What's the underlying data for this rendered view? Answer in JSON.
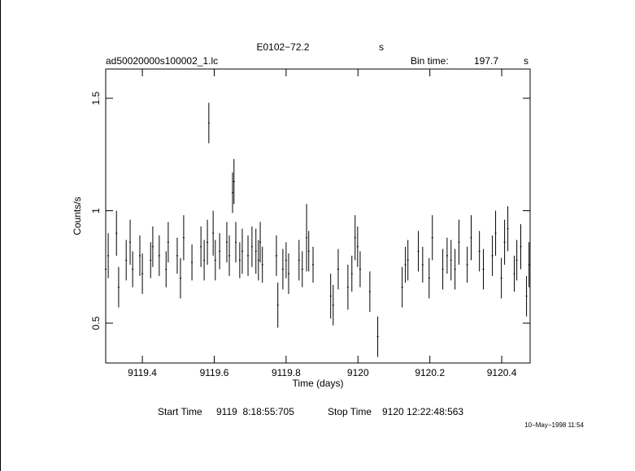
{
  "chart_data": {
    "type": "errorbar",
    "title": "E0102−72.2",
    "title_unit": "s",
    "subtitle": "ad50020000s100002_1.lc",
    "bin_time_label": "Bin time:",
    "bin_time": "197.7",
    "bin_time_unit": "s",
    "x_label": "Time (days)",
    "y_label": "Counts/s",
    "start_label": "Start Time",
    "start_time": "9119  8:18:55:705",
    "stop_label": "Stop Time",
    "stop_time": "9120 12:22:48:563",
    "timestamp": "10−May−1998 11:54",
    "color": "#000000",
    "xlim": [
      9119.298,
      9120.479
    ],
    "ylim": [
      0.323,
      1.63
    ],
    "xticks": [
      9119.4,
      9119.6,
      9119.8,
      9120,
      9120.2,
      9120.4
    ],
    "yticks": [
      0.5,
      1,
      1.5
    ],
    "x": [
      9119.298,
      9119.305,
      9119.328,
      9119.334,
      9119.355,
      9119.366,
      9119.373,
      9119.393,
      9119.4,
      9119.423,
      9119.429,
      9119.447,
      9119.466,
      9119.472,
      9119.497,
      9119.506,
      9119.515,
      9119.538,
      9119.563,
      9119.572,
      9119.581,
      9119.585,
      9119.597,
      9119.603,
      9119.615,
      9119.635,
      9119.642,
      9119.651,
      9119.655,
      9119.66,
      9119.671,
      9119.678,
      9119.694,
      9119.705,
      9119.716,
      9119.723,
      9119.728,
      9119.734,
      9119.773,
      9119.777,
      9119.791,
      9119.8,
      9119.807,
      9119.836,
      9119.845,
      9119.857,
      9119.863,
      9119.875,
      9119.924,
      9119.931,
      9119.945,
      9119.972,
      9119.983,
      9119.992,
      9119.999,
      9120.006,
      9120.033,
      9120.055,
      9120.123,
      9120.132,
      9120.139,
      9120.168,
      9120.18,
      9120.198,
      9120.207,
      9120.236,
      9120.248,
      9120.259,
      9120.27,
      9120.281,
      9120.304,
      9120.315,
      9120.338,
      9120.349,
      9120.374,
      9120.383,
      9120.399,
      9120.408,
      9120.417,
      9120.435,
      9120.442,
      9120.453,
      9120.469,
      9120.476
    ],
    "values": [
      0.74,
      0.8,
      0.9,
      0.66,
      0.78,
      0.86,
      0.74,
      0.8,
      0.72,
      0.78,
      0.84,
      0.8,
      0.74,
      0.86,
      0.8,
      0.7,
      0.88,
      0.77,
      0.84,
      0.78,
      0.86,
      1.39,
      0.9,
      0.78,
      0.82,
      0.86,
      0.8,
      1.08,
      1.13,
      0.86,
      0.78,
      0.82,
      0.8,
      0.84,
      0.82,
      0.78,
      0.86,
      0.76,
      0.8,
      0.58,
      0.74,
      0.78,
      0.72,
      0.78,
      0.74,
      0.88,
      0.82,
      0.76,
      0.62,
      0.58,
      0.74,
      0.66,
      0.72,
      0.88,
      0.84,
      0.74,
      0.64,
      0.44,
      0.66,
      0.76,
      0.78,
      0.82,
      0.76,
      0.7,
      0.88,
      0.74,
      0.8,
      0.78,
      0.74,
      0.86,
      0.76,
      0.88,
      0.82,
      0.74,
      0.8,
      0.9,
      0.7,
      0.86,
      0.92,
      0.72,
      0.78,
      0.84,
      0.62,
      0.76
    ],
    "errors": [
      0.08,
      0.1,
      0.1,
      0.09,
      0.09,
      0.1,
      0.08,
      0.09,
      0.09,
      0.08,
      0.09,
      0.09,
      0.08,
      0.09,
      0.08,
      0.09,
      0.1,
      0.08,
      0.09,
      0.09,
      0.1,
      0.09,
      0.1,
      0.09,
      0.08,
      0.09,
      0.09,
      0.09,
      0.1,
      0.09,
      0.08,
      0.1,
      0.09,
      0.09,
      0.1,
      0.09,
      0.09,
      0.08,
      0.09,
      0.1,
      0.09,
      0.08,
      0.09,
      0.09,
      0.08,
      0.15,
      0.09,
      0.08,
      0.1,
      0.09,
      0.09,
      0.1,
      0.08,
      0.1,
      0.09,
      0.08,
      0.09,
      0.09,
      0.09,
      0.08,
      0.09,
      0.09,
      0.08,
      0.09,
      0.1,
      0.09,
      0.08,
      0.09,
      0.09,
      0.1,
      0.08,
      0.1,
      0.09,
      0.09,
      0.09,
      0.1,
      0.09,
      0.1,
      0.1,
      0.08,
      0.09,
      0.1,
      0.09,
      0.1
    ]
  }
}
